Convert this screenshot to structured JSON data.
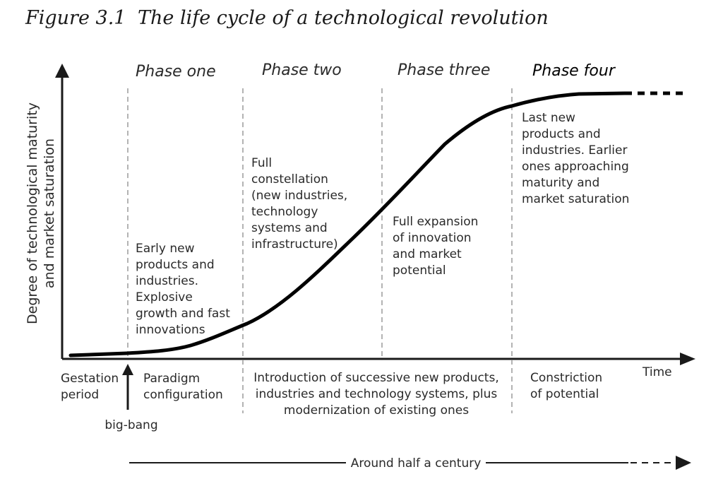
{
  "figure": {
    "label": "Figure 3.1",
    "title": "The life cycle of a technological revolution"
  },
  "y_axis_label": [
    "Degree of technological maturity",
    "and market saturation"
  ],
  "x_axis_label": "Time",
  "phases": [
    "Phase one",
    "Phase two",
    "Phase three",
    "Phase four"
  ],
  "phase_notes": {
    "one": [
      "Early new",
      "products and",
      "industries.",
      "Explosive",
      "growth and fast",
      "innovations"
    ],
    "two": [
      "Full",
      "constellation",
      "(new industries,",
      "technology",
      "systems and",
      "infrastructure)"
    ],
    "three": [
      "Full expansion",
      "of innovation",
      "and market",
      "potential"
    ],
    "four": [
      "Last new",
      "products and",
      "industries. Earlier",
      "ones approaching",
      "maturity and",
      "market saturation"
    ]
  },
  "bottom_labels": {
    "gestation": [
      "Gestation",
      "period"
    ],
    "paradigm": [
      "Paradigm",
      "configuration"
    ],
    "introduction": [
      "Introduction of successive new products,",
      "industries and technology systems, plus",
      "modernization of existing ones"
    ],
    "constriction": [
      "Constriction",
      "of potential"
    ],
    "big_bang": "big-bang"
  },
  "duration_label": "Around half a century",
  "colors": {
    "curve": "#000000",
    "axis": "#1a1a1a",
    "divider": "#8a8a8a"
  }
}
